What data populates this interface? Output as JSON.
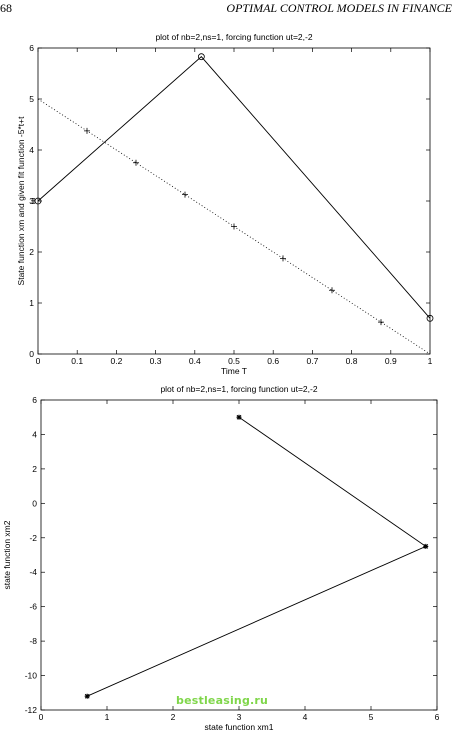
{
  "header": {
    "page_number": "68",
    "running_head": "OPTIMAL CONTROL MODELS IN FINANCE"
  },
  "watermark": {
    "text": "bestleasing.ru",
    "color": "#7fd64a"
  },
  "chart_data": [
    {
      "type": "line",
      "title": "plot of nb=2,ns=1, forcing function ut=2,-2",
      "xlabel": "Time T",
      "ylabel": "State function xm and given fit function -5*t+t",
      "xlim": [
        0,
        1
      ],
      "ylim": [
        0,
        6
      ],
      "xticks": [
        0,
        0.1,
        0.2,
        0.3,
        0.4,
        0.5,
        0.6,
        0.7,
        0.8,
        0.9,
        1
      ],
      "xtick_labels": [
        "0",
        "0.1",
        "0.2",
        "0.3",
        "0.4",
        "0.5",
        "0.6",
        "0.7",
        "0.8",
        "0.9",
        "1"
      ],
      "yticks": [
        0,
        1,
        2,
        3,
        4,
        5,
        6
      ],
      "ytick_labels": [
        "0",
        "1",
        "2",
        "3",
        "4",
        "5",
        "6"
      ],
      "grid": false,
      "series": [
        {
          "style": "solid",
          "marker": "circle",
          "x": [
            0,
            0.4167,
            1
          ],
          "y": [
            3.0,
            5.83,
            0.7
          ]
        },
        {
          "style": "dotted",
          "marker": "none",
          "x": [
            0,
            1
          ],
          "y": [
            5,
            0
          ]
        },
        {
          "style": "none",
          "marker": "plus",
          "x": [
            0.125,
            0.25,
            0.375,
            0.5,
            0.625,
            0.75,
            0.875
          ],
          "y": [
            4.375,
            3.75,
            3.125,
            2.5,
            1.875,
            1.25,
            0.625
          ]
        }
      ],
      "annotations": [
        {
          "text": "3",
          "x": -0.003,
          "y": 3.0
        }
      ]
    },
    {
      "type": "line",
      "title": "plot of nb=2,ns=1, forcing function ut=2,-2",
      "xlabel": "state function xm1",
      "ylabel": "state function xm2",
      "xlim": [
        0,
        6
      ],
      "ylim": [
        -12,
        6
      ],
      "xticks": [
        0,
        1,
        2,
        3,
        4,
        5,
        6
      ],
      "xtick_labels": [
        "0",
        "1",
        "2",
        "3",
        "4",
        "5",
        "6"
      ],
      "yticks": [
        -12,
        -10,
        -8,
        -6,
        -4,
        -2,
        0,
        2,
        4,
        6
      ],
      "ytick_labels": [
        "-12",
        "-10",
        "-8",
        "-6",
        "-4",
        "-2",
        "0",
        "2",
        "4",
        "6"
      ],
      "grid": false,
      "series": [
        {
          "style": "solid",
          "marker": "star",
          "x": [
            3.0,
            5.83,
            0.7
          ],
          "y": [
            5.0,
            -2.5,
            -11.2
          ]
        }
      ]
    }
  ]
}
